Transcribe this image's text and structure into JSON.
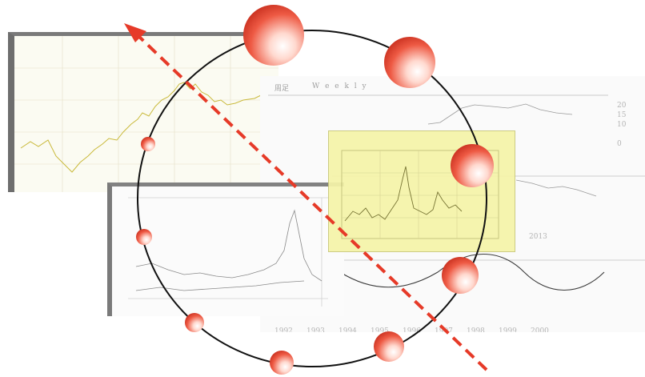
{
  "panel_a": {
    "title": ""
  },
  "panel_b": {
    "title": "周足",
    "subtitle": "W e e k l y",
    "right_ticks": [
      "20",
      "15",
      "10",
      "0"
    ],
    "axis_years": [
      "1992",
      "1993",
      "1994",
      "1995",
      "1996",
      "1997",
      "1998",
      "1999",
      "2000"
    ],
    "label_mid": "2013"
  },
  "panel_c": {
    "title": ""
  },
  "panel_y": {
    "title": ""
  },
  "colors": {
    "sphere": "#e8412c",
    "dashed_arrow": "#e63a28",
    "ring": "#111111",
    "highlight_panel": "#f5f4a8"
  }
}
